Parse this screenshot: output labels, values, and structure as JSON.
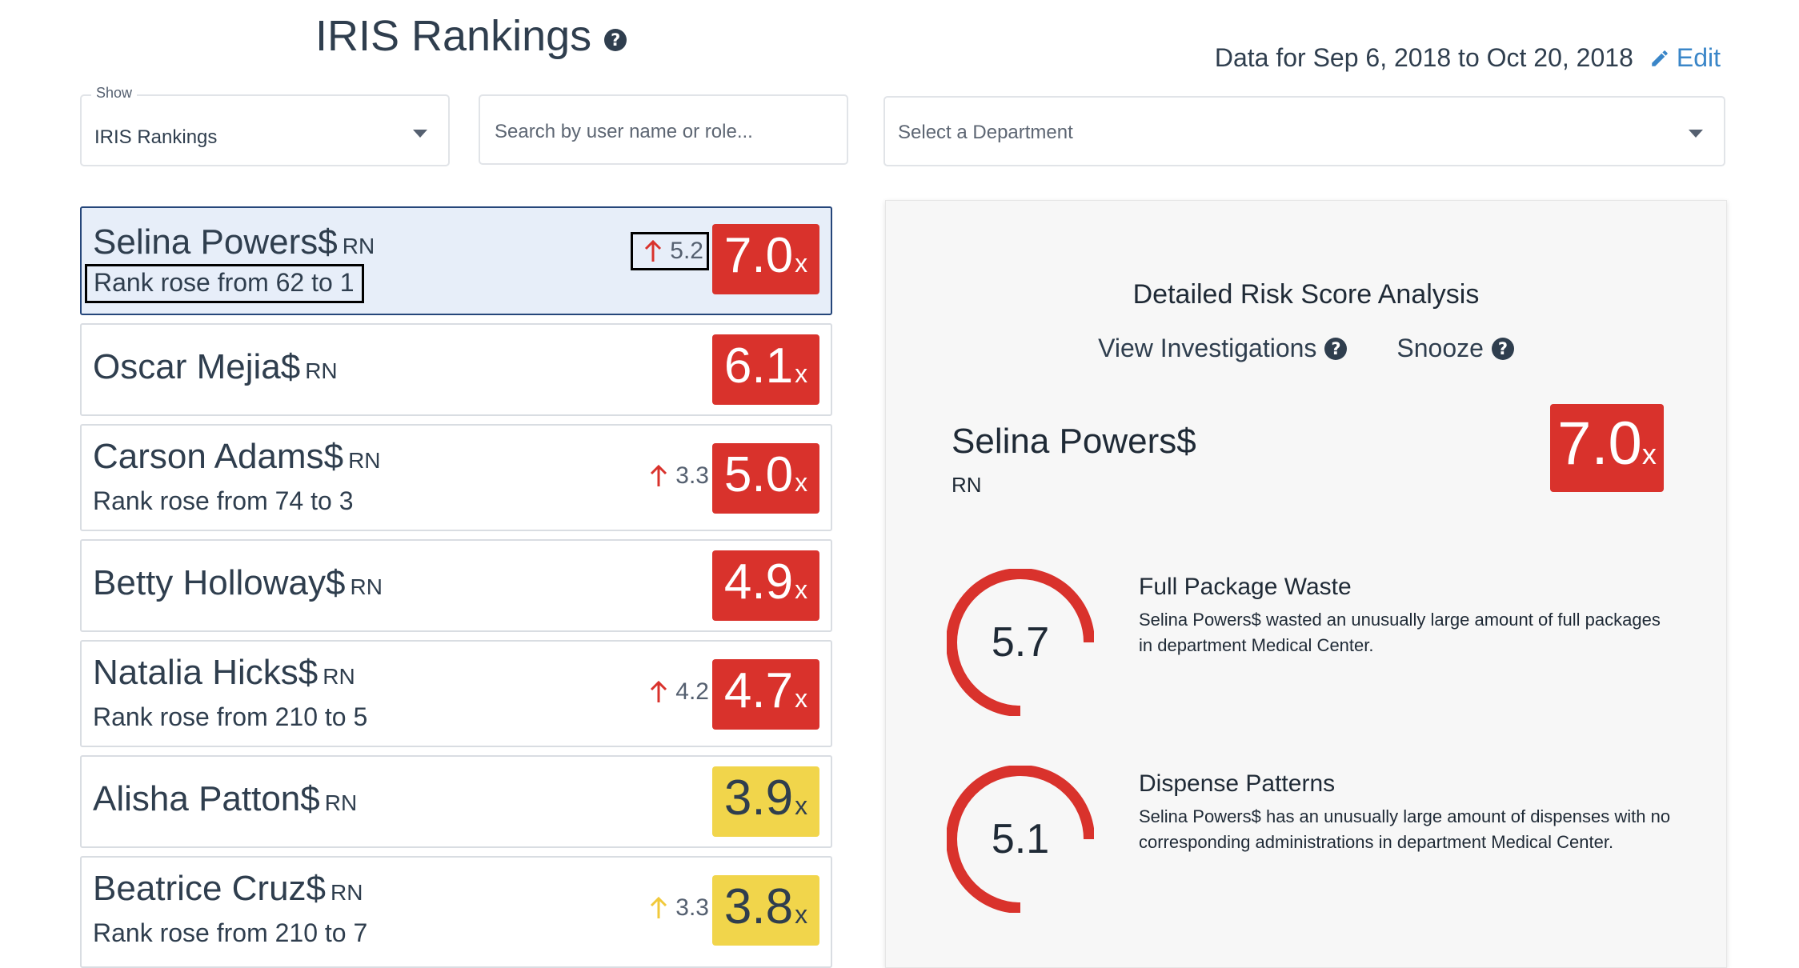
{
  "header": {
    "title": "IRIS Rankings",
    "help_icon": "question-circle-icon",
    "date_range": "Data for Sep 6, 2018 to Oct 20, 2018",
    "edit_label": "Edit",
    "edit_icon": "pencil-icon"
  },
  "controls": {
    "show_label": "Show",
    "show_value": "IRIS Rankings",
    "search_placeholder": "Search by user name or role...",
    "department_placeholder": "Select a Department"
  },
  "colors": {
    "red": "#d9322c",
    "yellow": "#f1d54b",
    "link": "#3a86c8",
    "arrow_yellow": "#f1d54b"
  },
  "rankings": [
    {
      "name": "Selina Powers$",
      "role": "RN",
      "rank_change": "Rank rose from 62 to 1",
      "delta": "5.2",
      "score": "7.0",
      "suffix": "x",
      "level": "red",
      "selected": true
    },
    {
      "name": "Oscar Mejia$",
      "role": "RN",
      "rank_change": "",
      "delta": "",
      "score": "6.1",
      "suffix": "x",
      "level": "red",
      "selected": false
    },
    {
      "name": "Carson Adams$",
      "role": "RN",
      "rank_change": "Rank rose from 74 to 3",
      "delta": "3.3",
      "score": "5.0",
      "suffix": "x",
      "level": "red",
      "selected": false
    },
    {
      "name": "Betty Holloway$",
      "role": "RN",
      "rank_change": "",
      "delta": "",
      "score": "4.9",
      "suffix": "x",
      "level": "red",
      "selected": false
    },
    {
      "name": "Natalia Hicks$",
      "role": "RN",
      "rank_change": "Rank rose from 210 to 5",
      "delta": "4.2",
      "score": "4.7",
      "suffix": "x",
      "level": "red",
      "selected": false
    },
    {
      "name": "Alisha Patton$",
      "role": "RN",
      "rank_change": "",
      "delta": "",
      "score": "3.9",
      "suffix": "x",
      "level": "yellow",
      "selected": false
    },
    {
      "name": "Beatrice Cruz$",
      "role": "RN",
      "rank_change": "Rank rose from 210 to 7",
      "delta": "3.3",
      "score": "3.8",
      "suffix": "x",
      "level": "yellow",
      "selected": false
    }
  ],
  "detail": {
    "title": "Detailed Risk Score Analysis",
    "view_investigations": "View Investigations",
    "snooze": "Snooze",
    "name": "Selina Powers$",
    "role": "RN",
    "score": "7.0",
    "suffix": "x",
    "factors": [
      {
        "title": "Full Package Waste",
        "value": "5.7",
        "description": "Selina Powers$ wasted an unusually large amount of full packages in department Medical Center."
      },
      {
        "title": "Dispense Patterns",
        "value": "5.1",
        "description": "Selina Powers$ has an unusually large amount of dispenses with no corresponding administrations in department Medical Center."
      }
    ]
  }
}
